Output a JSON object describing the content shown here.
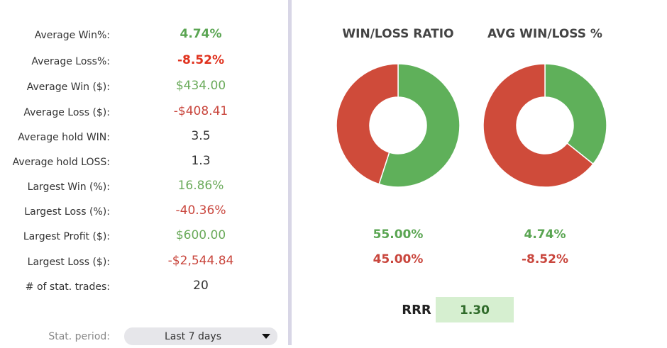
{
  "stats": {
    "rows": [
      {
        "label": "Average Win%:",
        "value": "4.74%",
        "color": "#5aa552"
      },
      {
        "label": "Average Loss%:",
        "value": "-8.52%",
        "color": "#e0321e"
      },
      {
        "label": "Average Win ($):",
        "value": "$434.00",
        "color": "#6aaa5a"
      },
      {
        "label": "Average Loss ($):",
        "value": "-$408.41",
        "color": "#c9463d"
      },
      {
        "label": "Average hold WIN:",
        "value": "3.5",
        "color": "#333333"
      },
      {
        "label": "Average hold LOSS:",
        "value": "1.3",
        "color": "#333333"
      },
      {
        "label": "Largest Win (%):",
        "value": "16.86%",
        "color": "#6aaa5a"
      },
      {
        "label": "Largest Loss (%):",
        "value": "-40.36%",
        "color": "#c9463d"
      },
      {
        "label": "Largest Profit ($):",
        "value": "$600.00",
        "color": "#6aaa5a"
      },
      {
        "label": "Largest Loss ($):",
        "value": "-$2,544.84",
        "color": "#c9463d"
      },
      {
        "label": "# of stat. trades:",
        "value": "20",
        "color": "#333333"
      }
    ],
    "period_label": "Stat. period:",
    "period_value": "Last 7 days"
  },
  "chart_data": [
    {
      "type": "pie",
      "title": "WIN/LOSS RATIO",
      "values": [
        55,
        45
      ],
      "value_labels": [
        "55.00%",
        "45.00%"
      ],
      "colors": [
        "#5fb05a",
        "#cf4b3a"
      ],
      "label_colors": [
        "#5aa552",
        "#c9463d"
      ]
    },
    {
      "type": "pie",
      "title": "AVG WIN/LOSS %",
      "values": [
        4.74,
        -8.52
      ],
      "value_labels": [
        "4.74%",
        "-8.52%"
      ],
      "colors": [
        "#5fb05a",
        "#cf4b3a"
      ],
      "label_colors": [
        "#5aa552",
        "#c9463d"
      ]
    }
  ],
  "rrr": {
    "label": "RRR",
    "value": "1.30"
  }
}
